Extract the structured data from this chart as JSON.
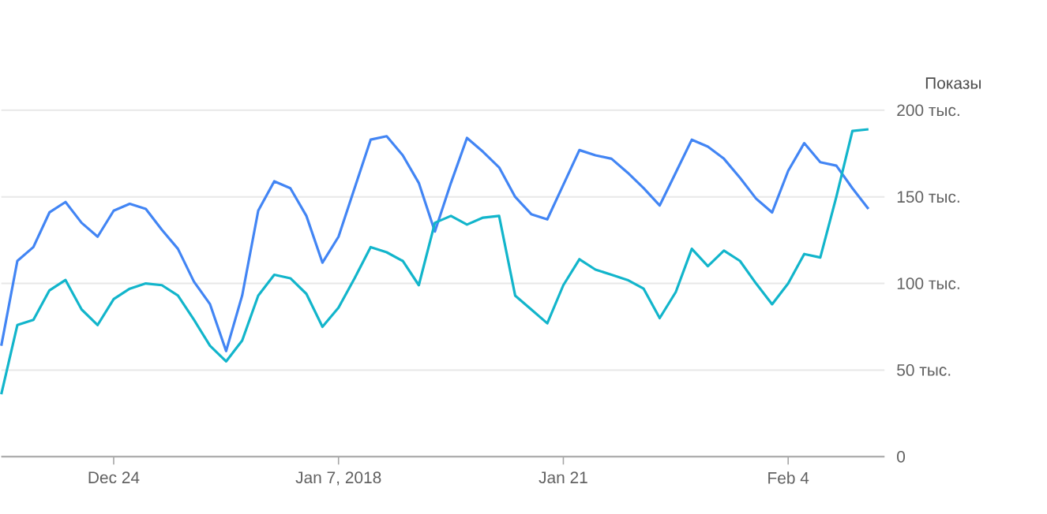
{
  "chart_data": {
    "type": "line",
    "ylabel": "Показы",
    "x": [
      "2017-12-17",
      "2017-12-18",
      "2017-12-19",
      "2017-12-20",
      "2017-12-21",
      "2017-12-22",
      "2017-12-23",
      "2017-12-24",
      "2017-12-25",
      "2017-12-26",
      "2017-12-27",
      "2017-12-28",
      "2017-12-29",
      "2017-12-30",
      "2017-12-31",
      "2018-01-01",
      "2018-01-02",
      "2018-01-03",
      "2018-01-04",
      "2018-01-05",
      "2018-01-06",
      "2018-01-07",
      "2018-01-08",
      "2018-01-09",
      "2018-01-10",
      "2018-01-11",
      "2018-01-12",
      "2018-01-13",
      "2018-01-14",
      "2018-01-15",
      "2018-01-16",
      "2018-01-17",
      "2018-01-18",
      "2018-01-19",
      "2018-01-20",
      "2018-01-21",
      "2018-01-22",
      "2018-01-23",
      "2018-01-24",
      "2018-01-25",
      "2018-01-26",
      "2018-01-27",
      "2018-01-28",
      "2018-01-29",
      "2018-01-30",
      "2018-01-31",
      "2018-02-01",
      "2018-02-02",
      "2018-02-03",
      "2018-02-04",
      "2018-02-05",
      "2018-02-06",
      "2018-02-07",
      "2018-02-08",
      "2018-02-09"
    ],
    "series": [
      {
        "color": "#4285f4",
        "values": [
          64,
          113,
          121,
          141,
          147,
          135,
          127,
          142,
          146,
          143,
          131,
          120,
          101,
          88,
          61,
          93,
          142,
          159,
          155,
          139,
          112,
          127,
          155,
          183,
          185,
          174,
          158,
          130,
          158,
          184,
          176,
          167,
          150,
          140,
          137,
          157,
          177,
          174,
          172,
          164,
          155,
          145,
          164,
          183,
          179,
          172,
          161,
          149,
          141,
          165,
          181,
          170,
          168,
          155,
          143
        ]
      },
      {
        "color": "#12b5cb",
        "values": [
          36,
          76,
          79,
          96,
          102,
          85,
          76,
          91,
          97,
          100,
          99,
          93,
          79,
          64,
          55,
          67,
          93,
          105,
          103,
          94,
          75,
          86,
          103,
          121,
          118,
          113,
          99,
          135,
          139,
          134,
          138,
          139,
          93,
          85,
          77,
          99,
          114,
          108,
          105,
          102,
          97,
          80,
          95,
          120,
          110,
          119,
          113,
          100,
          88,
          100,
          117,
          115,
          150,
          188,
          189
        ]
      }
    ],
    "xlim": [
      "2017-12-17",
      "2018-02-10"
    ],
    "xticks": [
      {
        "value": "2017-12-24",
        "label": "Dec 24"
      },
      {
        "value": "2018-01-07",
        "label": "Jan 7, 2018"
      },
      {
        "value": "2018-01-21",
        "label": "Jan 21"
      },
      {
        "value": "2018-02-04",
        "label": "Feb 4"
      }
    ],
    "ylim": [
      0,
      200
    ],
    "yticks": [
      0,
      {
        "value": 50,
        "label": "50 тыс."
      },
      {
        "value": 100,
        "label": "100 тыс."
      },
      {
        "value": 150,
        "label": "150 тыс."
      },
      {
        "value": 200,
        "label": "200 тыс."
      }
    ],
    "grid": "y",
    "marker": "none",
    "line_style": "solid"
  }
}
